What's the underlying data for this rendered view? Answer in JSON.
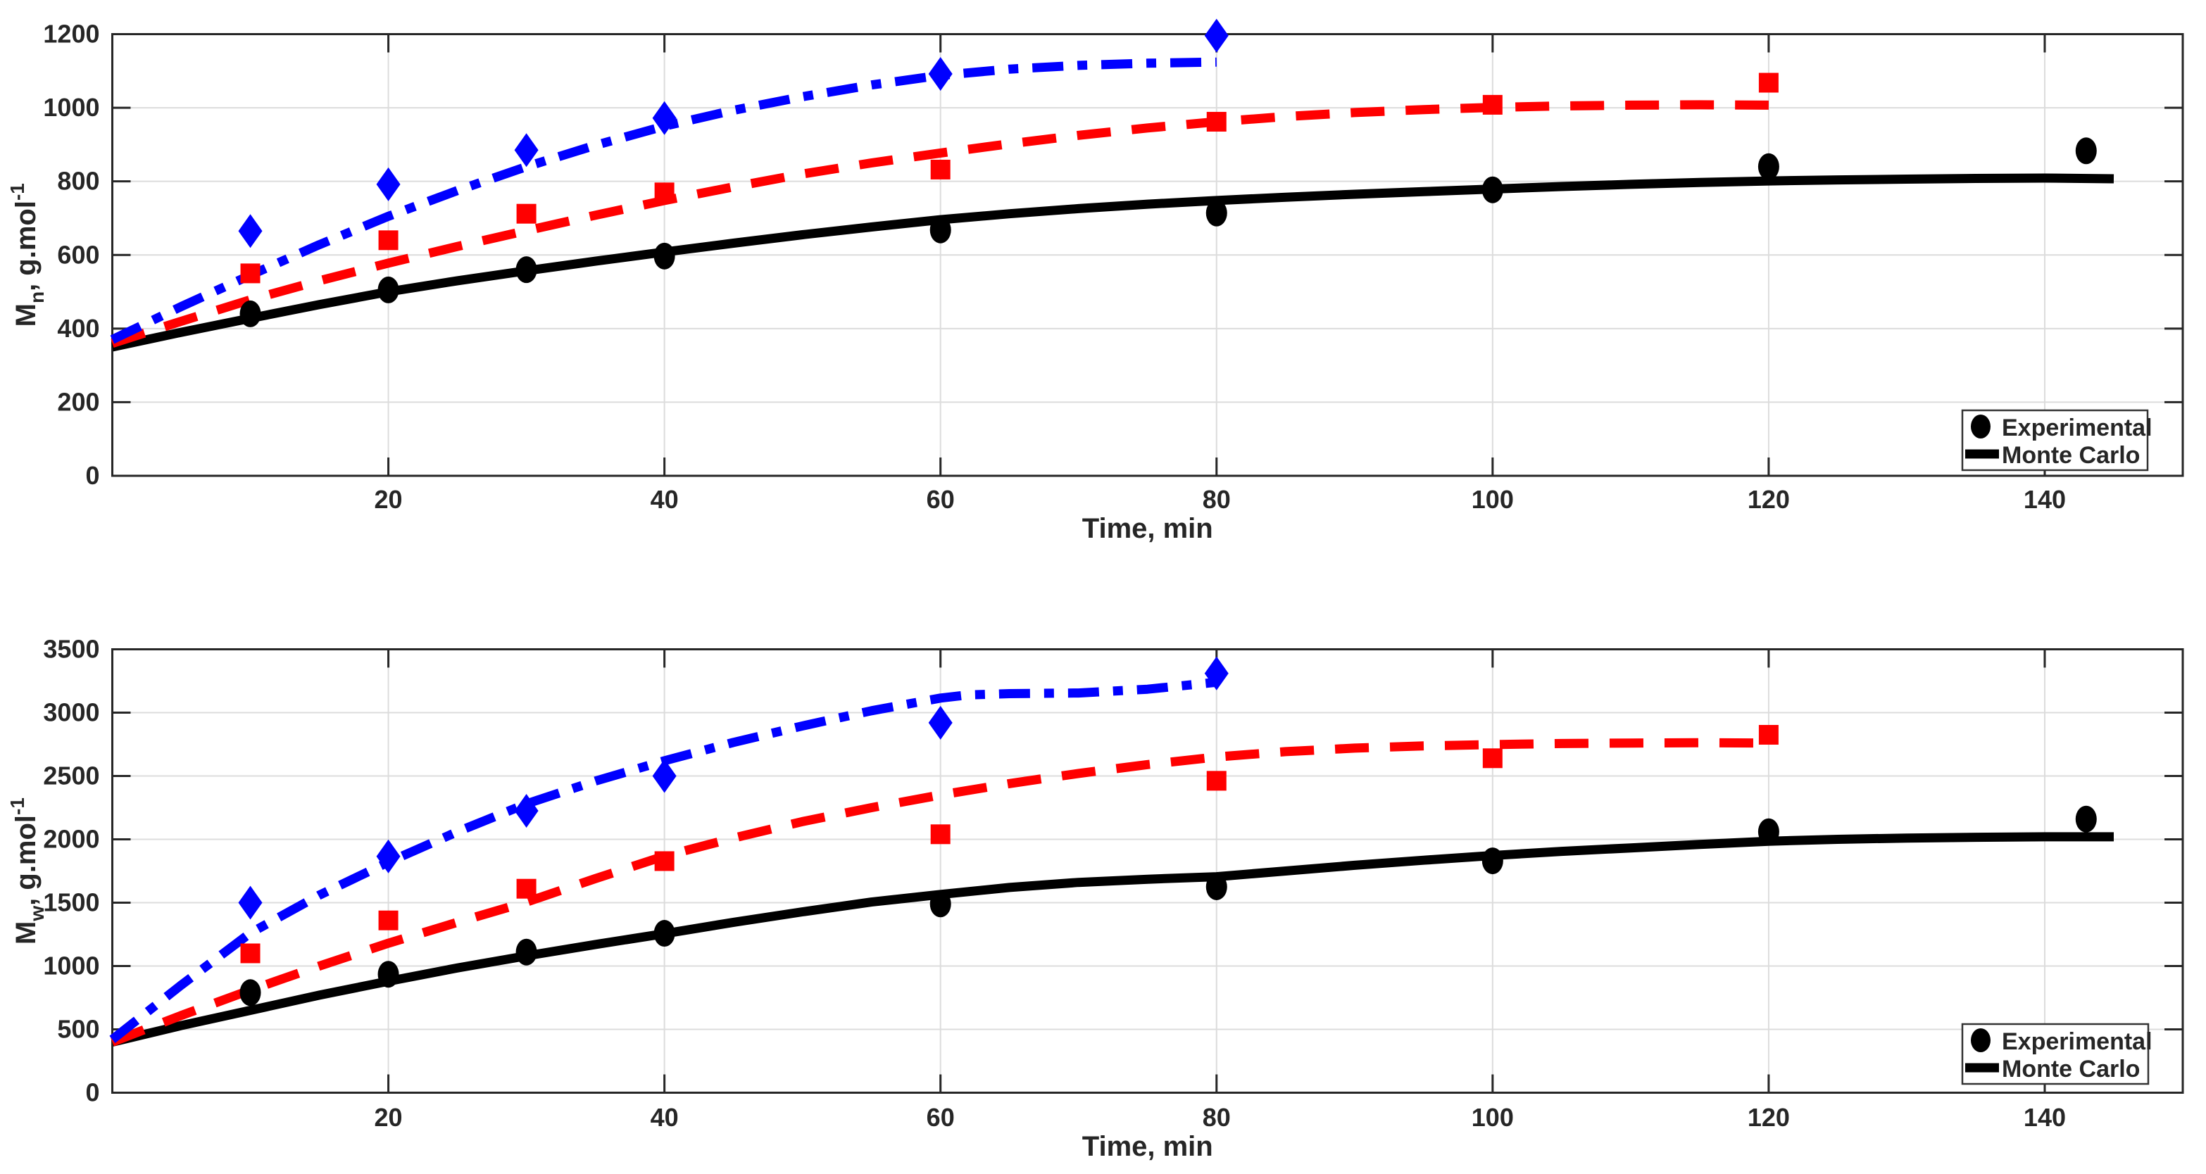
{
  "figure": {
    "background": "#FFFFFF",
    "grid_color": "#DCDCDC",
    "axis_color": "#262626",
    "series_colors": {
      "experimental": "#000000",
      "run_red": "#FF0000",
      "run_blue": "#0000FF"
    }
  },
  "chart_data": [
    {
      "type": "line+scatter",
      "panel": "top",
      "xlabel": "Time, min",
      "ylabel": "Mₙ, g.mol⁻¹",
      "ylabel_parts": {
        "base": "M",
        "sub": "n",
        "rest": ", g.mol",
        "sup": "-1"
      },
      "xlim": [
        0,
        150
      ],
      "ylim": [
        0,
        1200
      ],
      "xticks": [
        20,
        40,
        60,
        80,
        100,
        120,
        140
      ],
      "yticks": [
        0,
        200,
        400,
        600,
        800,
        1000,
        1200
      ],
      "grid": true,
      "legend": {
        "position": "bottom-right",
        "entries": [
          {
            "label": "Experimental",
            "marker": "circle",
            "color": "#000000"
          },
          {
            "label": "Monte Carlo",
            "marker": "line",
            "color": "#000000"
          }
        ]
      },
      "series": [
        {
          "name": "monte-carlo-black",
          "kind": "line",
          "style": "solid",
          "color": "#000000",
          "x": [
            0,
            5,
            10,
            15,
            20,
            25,
            30,
            35,
            40,
            45,
            50,
            55,
            60,
            65,
            70,
            75,
            80,
            85,
            90,
            95,
            100,
            105,
            110,
            115,
            120,
            125,
            130,
            135,
            140,
            145
          ],
          "y": [
            350,
            390,
            428,
            465,
            500,
            530,
            557,
            583,
            608,
            632,
            655,
            676,
            696,
            712,
            726,
            738,
            748,
            757,
            765,
            772,
            779,
            786,
            792,
            797,
            801,
            804,
            806,
            808,
            809,
            807
          ]
        },
        {
          "name": "monte-carlo-red",
          "kind": "line",
          "style": "dashed",
          "color": "#FF0000",
          "x": [
            0,
            5,
            10,
            15,
            20,
            25,
            30,
            35,
            40,
            45,
            50,
            55,
            60,
            65,
            70,
            75,
            80,
            85,
            90,
            95,
            100,
            105,
            110,
            115,
            120
          ],
          "y": [
            360,
            420,
            478,
            530,
            578,
            623,
            666,
            708,
            748,
            785,
            820,
            850,
            877,
            902,
            925,
            945,
            962,
            976,
            987,
            995,
            1001,
            1005,
            1007,
            1008,
            1007
          ]
        },
        {
          "name": "monte-carlo-blue",
          "kind": "line",
          "style": "dashdot",
          "color": "#0000FF",
          "x": [
            0,
            5,
            10,
            15,
            20,
            25,
            30,
            35,
            40,
            45,
            50,
            55,
            60,
            65,
            70,
            75,
            80
          ],
          "y": [
            370,
            460,
            545,
            628,
            705,
            775,
            840,
            898,
            950,
            993,
            1030,
            1062,
            1088,
            1105,
            1115,
            1121,
            1124
          ]
        },
        {
          "name": "experimental-circles",
          "kind": "scatter",
          "marker": "circle",
          "color": "#000000",
          "x": [
            10,
            20,
            30,
            40,
            60,
            80,
            100,
            120,
            143
          ],
          "y": [
            440,
            505,
            560,
            597,
            668,
            714,
            777,
            840,
            883
          ]
        },
        {
          "name": "experimental-squares",
          "kind": "scatter",
          "marker": "square",
          "color": "#FF0000",
          "x": [
            10,
            20,
            30,
            40,
            60,
            80,
            100,
            120
          ],
          "y": [
            550,
            640,
            712,
            770,
            832,
            962,
            1008,
            1068
          ]
        },
        {
          "name": "experimental-diamonds",
          "kind": "scatter",
          "marker": "diamond",
          "color": "#0000FF",
          "x": [
            10,
            20,
            30,
            40,
            60,
            80
          ],
          "y": [
            665,
            792,
            885,
            972,
            1092,
            1196
          ]
        }
      ]
    },
    {
      "type": "line+scatter",
      "panel": "bottom",
      "xlabel": "Time, min",
      "ylabel": "M𝓌, g.mol⁻¹",
      "ylabel_parts": {
        "base": "M",
        "sub": "w",
        "rest": ", g.mol",
        "sup": "-1"
      },
      "xlim": [
        0,
        150
      ],
      "ylim": [
        0,
        3500
      ],
      "xticks": [
        20,
        40,
        60,
        80,
        100,
        120,
        140
      ],
      "yticks": [
        0,
        500,
        1000,
        1500,
        2000,
        2500,
        3000,
        3500
      ],
      "grid": true,
      "legend": {
        "position": "bottom-right",
        "entries": [
          {
            "label": "Experimental",
            "marker": "circle",
            "color": "#000000"
          },
          {
            "label": "Monte Carlo",
            "marker": "line",
            "color": "#000000"
          }
        ]
      },
      "series": [
        {
          "name": "monte-carlo-black",
          "kind": "line",
          "style": "solid",
          "color": "#000000",
          "x": [
            0,
            5,
            10,
            15,
            20,
            25,
            30,
            35,
            40,
            45,
            50,
            55,
            60,
            65,
            70,
            75,
            80,
            85,
            90,
            95,
            100,
            105,
            110,
            115,
            120,
            125,
            130,
            135,
            140,
            145
          ],
          "y": [
            400,
            530,
            650,
            770,
            880,
            985,
            1080,
            1170,
            1255,
            1345,
            1428,
            1505,
            1565,
            1620,
            1660,
            1685,
            1705,
            1750,
            1795,
            1835,
            1872,
            1905,
            1932,
            1960,
            1985,
            2000,
            2010,
            2016,
            2020,
            2020
          ]
        },
        {
          "name": "monte-carlo-red",
          "kind": "line",
          "style": "dashed",
          "color": "#FF0000",
          "x": [
            0,
            5,
            10,
            15,
            20,
            25,
            30,
            35,
            40,
            45,
            50,
            55,
            60,
            65,
            70,
            75,
            80,
            85,
            90,
            95,
            100,
            105,
            110,
            115,
            120
          ],
          "y": [
            400,
            610,
            810,
            1000,
            1180,
            1345,
            1505,
            1690,
            1868,
            2010,
            2140,
            2250,
            2350,
            2440,
            2520,
            2590,
            2650,
            2692,
            2720,
            2737,
            2748,
            2756,
            2760,
            2762,
            2760
          ]
        },
        {
          "name": "monte-carlo-blue",
          "kind": "line",
          "style": "dashdot",
          "color": "#0000FF",
          "x": [
            0,
            5,
            10,
            15,
            20,
            25,
            30,
            35,
            40,
            45,
            50,
            55,
            60,
            62,
            65,
            70,
            75,
            80
          ],
          "y": [
            420,
            850,
            1260,
            1560,
            1820,
            2060,
            2280,
            2460,
            2620,
            2765,
            2895,
            3015,
            3115,
            3140,
            3150,
            3155,
            3185,
            3240
          ]
        },
        {
          "name": "experimental-circles",
          "kind": "scatter",
          "marker": "circle",
          "color": "#000000",
          "x": [
            10,
            20,
            30,
            40,
            60,
            80,
            100,
            120,
            143
          ],
          "y": [
            790,
            935,
            1110,
            1258,
            1490,
            1625,
            1830,
            2060,
            2160
          ]
        },
        {
          "name": "experimental-squares",
          "kind": "scatter",
          "marker": "square",
          "color": "#FF0000",
          "x": [
            10,
            20,
            30,
            40,
            60,
            80,
            100,
            120
          ],
          "y": [
            1100,
            1360,
            1610,
            1828,
            2040,
            2462,
            2640,
            2825
          ]
        },
        {
          "name": "experimental-diamonds",
          "kind": "scatter",
          "marker": "diamond",
          "color": "#0000FF",
          "x": [
            10,
            20,
            30,
            40,
            60,
            80
          ],
          "y": [
            1500,
            1865,
            2225,
            2500,
            2920,
            3310
          ]
        }
      ]
    }
  ]
}
